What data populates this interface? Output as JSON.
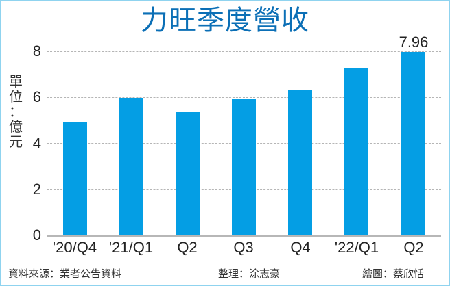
{
  "title": "力旺季度營收",
  "unit_label": [
    "單",
    "位",
    "：",
    "億",
    "元"
  ],
  "y_ticks": [
    "0",
    "2",
    "4",
    "6",
    "8"
  ],
  "x_labels": [
    "'20/Q4",
    "'21/Q1",
    "Q2",
    "Q3",
    "Q4",
    "'22/Q1",
    "Q2"
  ],
  "highlight_label": "7.96",
  "footer": {
    "source": "資料來源：業者公告資料",
    "compiled_by": "整理：涂志豪",
    "graphic_by": "繪圖：蔡欣恬"
  },
  "colors": {
    "bar": "#049ee4",
    "title": "#0b6fb6",
    "border": "#8fd3ef",
    "grid": "#b5b5b5",
    "axis": "#b7b7b7"
  },
  "chart_data": {
    "type": "bar",
    "title": "力旺季度營收",
    "xlabel": "",
    "ylabel": "單位：億元",
    "categories": [
      "'20/Q4",
      "'21/Q1",
      "Q2",
      "Q3",
      "Q4",
      "'22/Q1",
      "Q2"
    ],
    "values": [
      4.94,
      5.98,
      5.39,
      5.92,
      6.31,
      7.29,
      7.96
    ],
    "data_labels": [
      null,
      null,
      null,
      null,
      null,
      null,
      "7.96"
    ],
    "ylim": [
      0,
      8
    ],
    "yticks": [
      0,
      2,
      4,
      6,
      8
    ],
    "grid": "horizontal dashed",
    "legend": "none",
    "annotations": [
      "資料來源：業者公告資料",
      "整理：涂志豪",
      "繪圖：蔡欣恬"
    ]
  }
}
